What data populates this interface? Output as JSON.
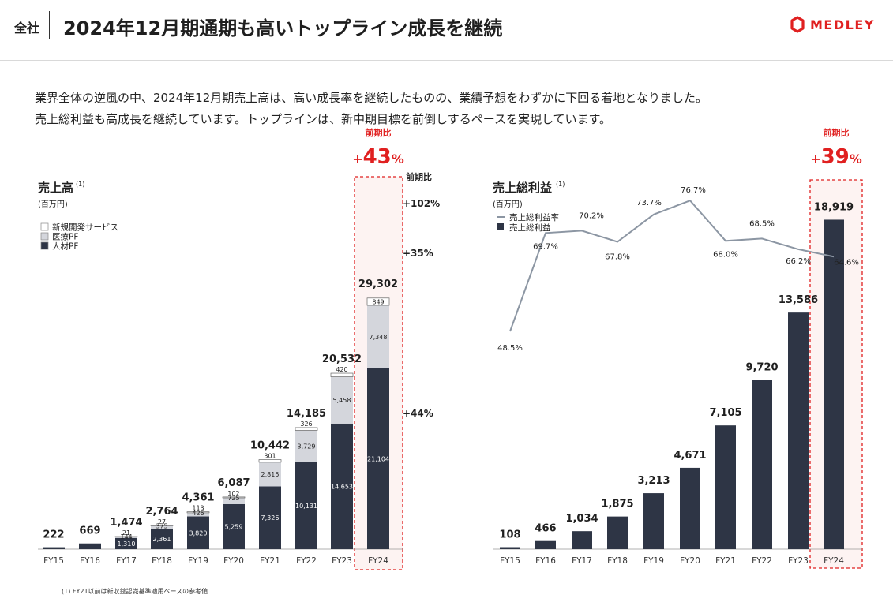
{
  "header": {
    "section_tag": "全社",
    "title": "2024年12月期通期も高いトップライン成長を継続",
    "logo_text": "MEDLEY",
    "accent_color": "#e02020"
  },
  "lead_lines": [
    "業界全体の逆風の中、2024年12月期売上高は、高い成長率を継続したものの、業績予想をわずかに下回る着地となりました。",
    "売上総利益も高成長を継続しています。トップラインは、新中期目標を前倒しするペースを実現しています。"
  ],
  "footnote": "(1) FY21以前は新収益認識基準適用ベースの参考値",
  "colors": {
    "dark": "#2e3545",
    "light": "#d4d6dc",
    "white_seg": "#ffffff",
    "line": "#8c96a3",
    "highlight": "#e02020"
  },
  "chart_data": [
    {
      "type": "bar",
      "stacked": true,
      "title": "売上高",
      "title_sup": "(1)",
      "unit": "(百万円)",
      "categories": [
        "FY15",
        "FY16",
        "FY17",
        "FY18",
        "FY19",
        "FY20",
        "FY21",
        "FY22",
        "FY23",
        "FY24"
      ],
      "series": [
        {
          "name": "人材PF",
          "values": [
            222,
            669,
            1310,
            2361,
            3820,
            5259,
            7326,
            10131,
            14653,
            21104
          ]
        },
        {
          "name": "医療PF",
          "values": [
            0,
            0,
            144,
            375,
            426,
            725,
            2815,
            3729,
            5458,
            7348
          ]
        },
        {
          "name": "新規開発サービス",
          "values": [
            0,
            0,
            21,
            27,
            113,
            102,
            301,
            326,
            420,
            849
          ]
        }
      ],
      "segment_labels": [
        [
          null,
          null,
          "1,310",
          "2,361",
          "3,820",
          "5,259",
          "7,326",
          "10,131",
          "14,653",
          "21,104"
        ],
        [
          null,
          null,
          "144",
          "375",
          "426",
          "725",
          "2,815",
          "3,729",
          "5,458",
          "7,348"
        ],
        [
          null,
          null,
          "21",
          "27",
          "113",
          "102",
          "301",
          "326",
          "420",
          "849"
        ]
      ],
      "total_labels": [
        "222",
        "669",
        "1,474",
        "2,764",
        "4,361",
        "6,087",
        "10,442",
        "14,185",
        "20,532",
        "29,302"
      ],
      "ylim": [
        0,
        31000
      ],
      "highlight": {
        "category": "FY24",
        "caption": "前期比",
        "main": "+43",
        "unit": "%"
      },
      "growth": {
        "header": "前期比",
        "items": [
          "+102%",
          "+35%",
          "+44%"
        ]
      }
    },
    {
      "type": "bar+line",
      "title": "売上総利益",
      "title_sup": "(1)",
      "unit": "(百万円)",
      "categories": [
        "FY15",
        "FY16",
        "FY17",
        "FY18",
        "FY19",
        "FY20",
        "FY21",
        "FY22",
        "FY23",
        "FY24"
      ],
      "bar_series": {
        "name": "売上総利益",
        "values": [
          108,
          466,
          1034,
          1875,
          3213,
          4671,
          7105,
          9720,
          13586,
          18919
        ]
      },
      "bar_labels": [
        "108",
        "466",
        "1,034",
        "1,875",
        "3,213",
        "4,671",
        "7,105",
        "9,720",
        "13,586",
        "18,919"
      ],
      "line_series": {
        "name": "売上総利益率",
        "values": [
          48.5,
          69.7,
          70.2,
          67.8,
          73.7,
          76.7,
          68.0,
          68.5,
          66.2,
          64.6
        ]
      },
      "line_labels": [
        "48.5%",
        "69.7%",
        "70.2%",
        "67.8%",
        "73.7%",
        "76.7%",
        "68.0%",
        "68.5%",
        "66.2%",
        "64.6%"
      ],
      "ylim": [
        0,
        20000
      ],
      "highlight": {
        "category": "FY24",
        "caption": "前期比",
        "main": "+39",
        "unit": "%"
      }
    }
  ]
}
